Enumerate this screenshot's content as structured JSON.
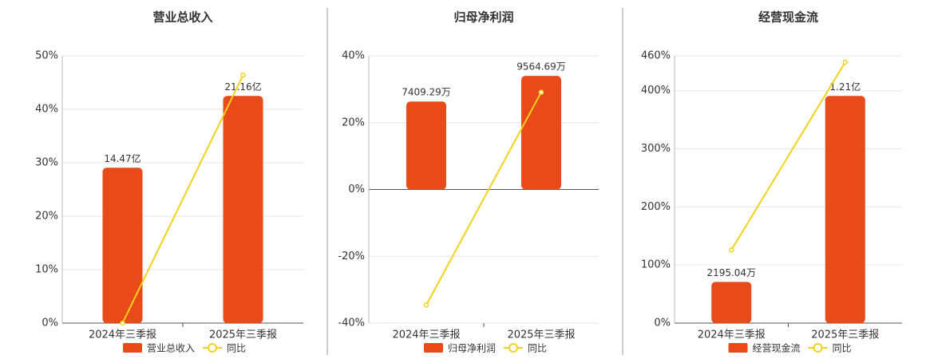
{
  "chart_data": [
    {
      "type": "bar",
      "title": "营业总收入",
      "categories": [
        "2024年三季报",
        "2025年三季报"
      ],
      "series": [
        {
          "name": "营业总收入",
          "color": "#e84a1a",
          "values": [
            1447000000,
            2116000000
          ],
          "value_labels": [
            "14.47亿",
            "21.16亿"
          ]
        },
        {
          "name": "同比",
          "color": "#f2d21b",
          "values": [
            0,
            46.4
          ]
        }
      ],
      "ylim": [
        0,
        50
      ],
      "yticks": [
        {
          "value": 0,
          "label": "0%"
        },
        {
          "value": 10,
          "label": "10%"
        },
        {
          "value": 20,
          "label": "20%"
        },
        {
          "value": 30,
          "label": "30%"
        },
        {
          "value": 40,
          "label": "40%"
        },
        {
          "value": 50,
          "label": "50%"
        }
      ],
      "grid": true
    },
    {
      "type": "bar",
      "title": "归母净利润",
      "categories": [
        "2024年三季报",
        "2025年三季报"
      ],
      "series": [
        {
          "name": "归母净利润",
          "color": "#e84a1a",
          "values": [
            74092900,
            95646900
          ],
          "value_labels": [
            "7409.29万",
            "9564.69万"
          ]
        },
        {
          "name": "同比",
          "color": "#f2d21b",
          "values": [
            -34.6,
            29.1
          ]
        }
      ],
      "ylim": [
        -40,
        40
      ],
      "yticks": [
        {
          "value": -40,
          "label": "-40%"
        },
        {
          "value": -20,
          "label": "-20%"
        },
        {
          "value": 0,
          "label": "0%"
        },
        {
          "value": 20,
          "label": "20%"
        },
        {
          "value": 40,
          "label": "40%"
        }
      ],
      "grid": true
    },
    {
      "type": "bar",
      "title": "经营现金流",
      "categories": [
        "2024年三季报",
        "2025年三季报"
      ],
      "series": [
        {
          "name": "经营现金流",
          "color": "#e84a1a",
          "values": [
            21950400,
            121000000
          ],
          "value_labels": [
            "2195.04万",
            "1.21亿"
          ]
        },
        {
          "name": "同比",
          "color": "#f2d21b",
          "values": [
            126,
            449
          ]
        }
      ],
      "ylim": [
        0,
        460
      ],
      "yticks": [
        {
          "value": 0,
          "label": "0%"
        },
        {
          "value": 100,
          "label": "100%"
        },
        {
          "value": 200,
          "label": "200%"
        },
        {
          "value": 300,
          "label": "300%"
        },
        {
          "value": 400,
          "label": "400%"
        },
        {
          "value": 460,
          "label": "460%"
        }
      ],
      "grid": true
    }
  ]
}
